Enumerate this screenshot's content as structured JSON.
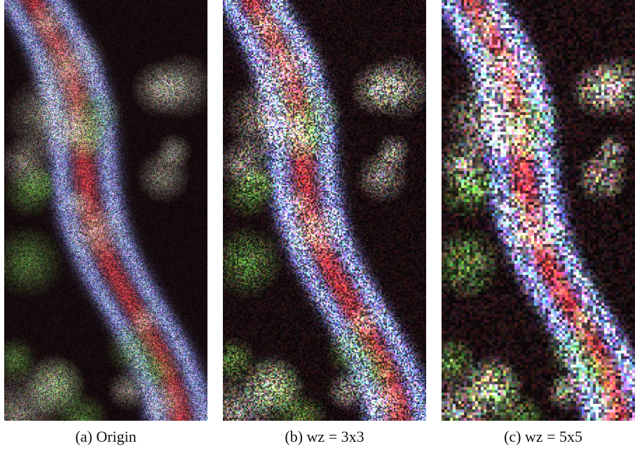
{
  "figure": {
    "panels": [
      {
        "caption": "(a) Origin",
        "filter_window": "none",
        "grain": 1
      },
      {
        "caption": "(b) wz = 3x3",
        "filter_window": "3x3",
        "grain": 2
      },
      {
        "caption": "(c) wz = 5x5",
        "filter_window": "5x5",
        "grain": 4
      }
    ],
    "content": "Pseudocolor SAR image of a glacier valley with speckle noise",
    "palette": {
      "background": "#140a0c",
      "river": "#b0343c",
      "ridges": "#9aa4ff",
      "vegetation": "#6aa04a",
      "bright": "#f0f0d8"
    }
  }
}
